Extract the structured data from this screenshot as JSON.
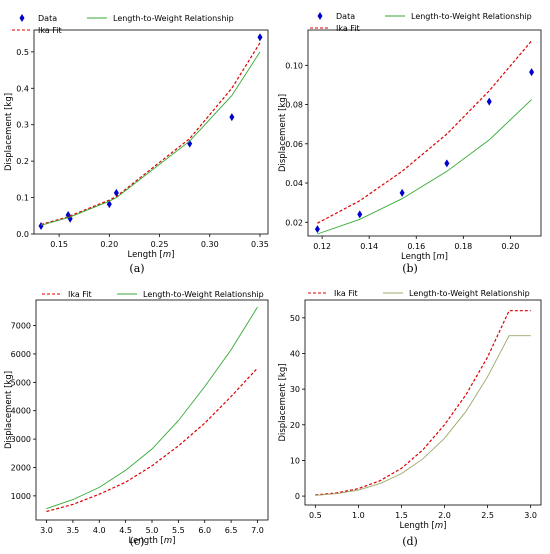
{
  "chart_data": [
    {
      "type": "line",
      "panel": "(a)",
      "xlabel": "Length [m]",
      "ylabel": "Displacement [kg]",
      "xlim": [
        0.125,
        0.358
      ],
      "ylim": [
        0.0,
        0.56
      ],
      "xticks": [
        "0.15",
        "0.20",
        "0.25",
        "0.30",
        "0.35"
      ],
      "yticks": [
        "0.0",
        "0.1",
        "0.2",
        "0.3",
        "0.4",
        "0.5"
      ],
      "legend_placement": "top",
      "series": [
        {
          "name": "Data",
          "style": "scatter",
          "color": "#0000cc",
          "x": [
            0.132,
            0.159,
            0.161,
            0.2,
            0.207,
            0.28,
            0.322,
            0.35
          ],
          "y": [
            0.022,
            0.052,
            0.042,
            0.082,
            0.113,
            0.248,
            0.321,
            0.54
          ]
        },
        {
          "name": "Ika Fit",
          "style": "dashed",
          "color": "#dd0000",
          "x": [
            0.132,
            0.159,
            0.161,
            0.2,
            0.207,
            0.28,
            0.322,
            0.35
          ],
          "y": [
            0.026,
            0.047,
            0.05,
            0.093,
            0.103,
            0.262,
            0.4,
            0.525
          ]
        },
        {
          "name": "Length-to-Weight Relationship",
          "style": "solid",
          "color": "#33aa33",
          "x": [
            0.132,
            0.159,
            0.161,
            0.2,
            0.207,
            0.28,
            0.322,
            0.35
          ],
          "y": [
            0.024,
            0.045,
            0.047,
            0.09,
            0.1,
            0.255,
            0.38,
            0.5
          ]
        }
      ]
    },
    {
      "type": "line",
      "panel": "(b)",
      "xlabel": "Length [m]",
      "ylabel": "Displacement [kg]",
      "xlim": [
        0.114,
        0.213
      ],
      "ylim": [
        0.013,
        0.118
      ],
      "xticks": [
        "0.12",
        "0.14",
        "0.16",
        "0.18",
        "0.20"
      ],
      "yticks": [
        "0.02",
        "0.04",
        "0.06",
        "0.08",
        "0.10"
      ],
      "legend_placement": "top",
      "series": [
        {
          "name": "Data",
          "style": "scatter",
          "color": "#0000cc",
          "x": [
            0.118,
            0.136,
            0.154,
            0.173,
            0.191,
            0.209
          ],
          "y": [
            0.0165,
            0.024,
            0.035,
            0.05,
            0.0815,
            0.0965
          ]
        },
        {
          "name": "Ika Fit",
          "style": "dashed",
          "color": "#dd0000",
          "x": [
            0.118,
            0.136,
            0.154,
            0.173,
            0.191,
            0.209
          ],
          "y": [
            0.0195,
            0.031,
            0.046,
            0.065,
            0.087,
            0.1125
          ]
        },
        {
          "name": "Length-to-Weight Relationship",
          "style": "solid",
          "color": "#33aa33",
          "x": [
            0.118,
            0.136,
            0.154,
            0.173,
            0.191,
            0.209
          ],
          "y": [
            0.014,
            0.0215,
            0.032,
            0.046,
            0.062,
            0.0825
          ]
        }
      ]
    },
    {
      "type": "line",
      "panel": "(c)",
      "xlabel": "Length [m]",
      "ylabel": "Displacement [kg]",
      "xlim": [
        2.8,
        7.2
      ],
      "ylim": [
        150,
        7900
      ],
      "xticks": [
        "3.0",
        "3.5",
        "4.0",
        "4.5",
        "5.0",
        "5.5",
        "6.0",
        "6.5",
        "7.0"
      ],
      "yticks": [
        "1000",
        "2000",
        "3000",
        "4000",
        "5000",
        "6000",
        "7000"
      ],
      "legend_placement": "top",
      "series": [
        {
          "name": "Ika Fit",
          "style": "dashed",
          "color": "#dd0000",
          "x": [
            3.0,
            3.5,
            4.0,
            4.5,
            5.0,
            5.5,
            6.0,
            6.5,
            7.0
          ],
          "y": [
            450,
            700,
            1060,
            1480,
            2060,
            2760,
            3560,
            4500,
            5500
          ]
        },
        {
          "name": "Length-to-Weight Relationship",
          "style": "solid",
          "color": "#33aa33",
          "x": [
            3.0,
            3.5,
            4.0,
            4.5,
            5.0,
            5.5,
            6.0,
            6.5,
            7.0
          ],
          "y": [
            550,
            870,
            1300,
            1900,
            2650,
            3650,
            4850,
            6150,
            7650
          ]
        }
      ]
    },
    {
      "type": "line",
      "panel": "(d)",
      "xlabel": "Length [m]",
      "ylabel": "Displacement [kg]",
      "xlim": [
        0.38,
        3.12
      ],
      "ylim": [
        -2.5,
        55
      ],
      "xticks": [
        "0.5",
        "1.0",
        "1.5",
        "2.0",
        "2.5",
        "3.0"
      ],
      "yticks": [
        "0",
        "10",
        "20",
        "30",
        "40",
        "50"
      ],
      "legend_placement": "top",
      "series": [
        {
          "name": "Ika Fit",
          "style": "dashed",
          "color": "#dd0000",
          "x": [
            0.5,
            0.75,
            1.0,
            1.25,
            1.5,
            1.75,
            2.0,
            2.25,
            2.5,
            2.75,
            3.0
          ],
          "y": [
            0.3,
            0.9,
            2.1,
            4.3,
            7.8,
            13.0,
            20.0,
            28.5,
            39.0,
            52.0,
            52.0
          ]
        },
        {
          "name": "Length-to-Weight Relationship",
          "style": "solid",
          "color": "#9aa86a",
          "x": [
            0.5,
            0.75,
            1.0,
            1.25,
            1.5,
            1.75,
            2.0,
            2.25,
            2.5,
            2.75,
            3.0
          ],
          "y": [
            0.2,
            0.7,
            1.7,
            3.5,
            6.3,
            10.5,
            16.2,
            23.8,
            33.5,
            45.0,
            45.0
          ]
        }
      ]
    }
  ],
  "labels": {
    "a": "(a)",
    "b": "(b)",
    "c": "(c)",
    "d": "(d)"
  }
}
